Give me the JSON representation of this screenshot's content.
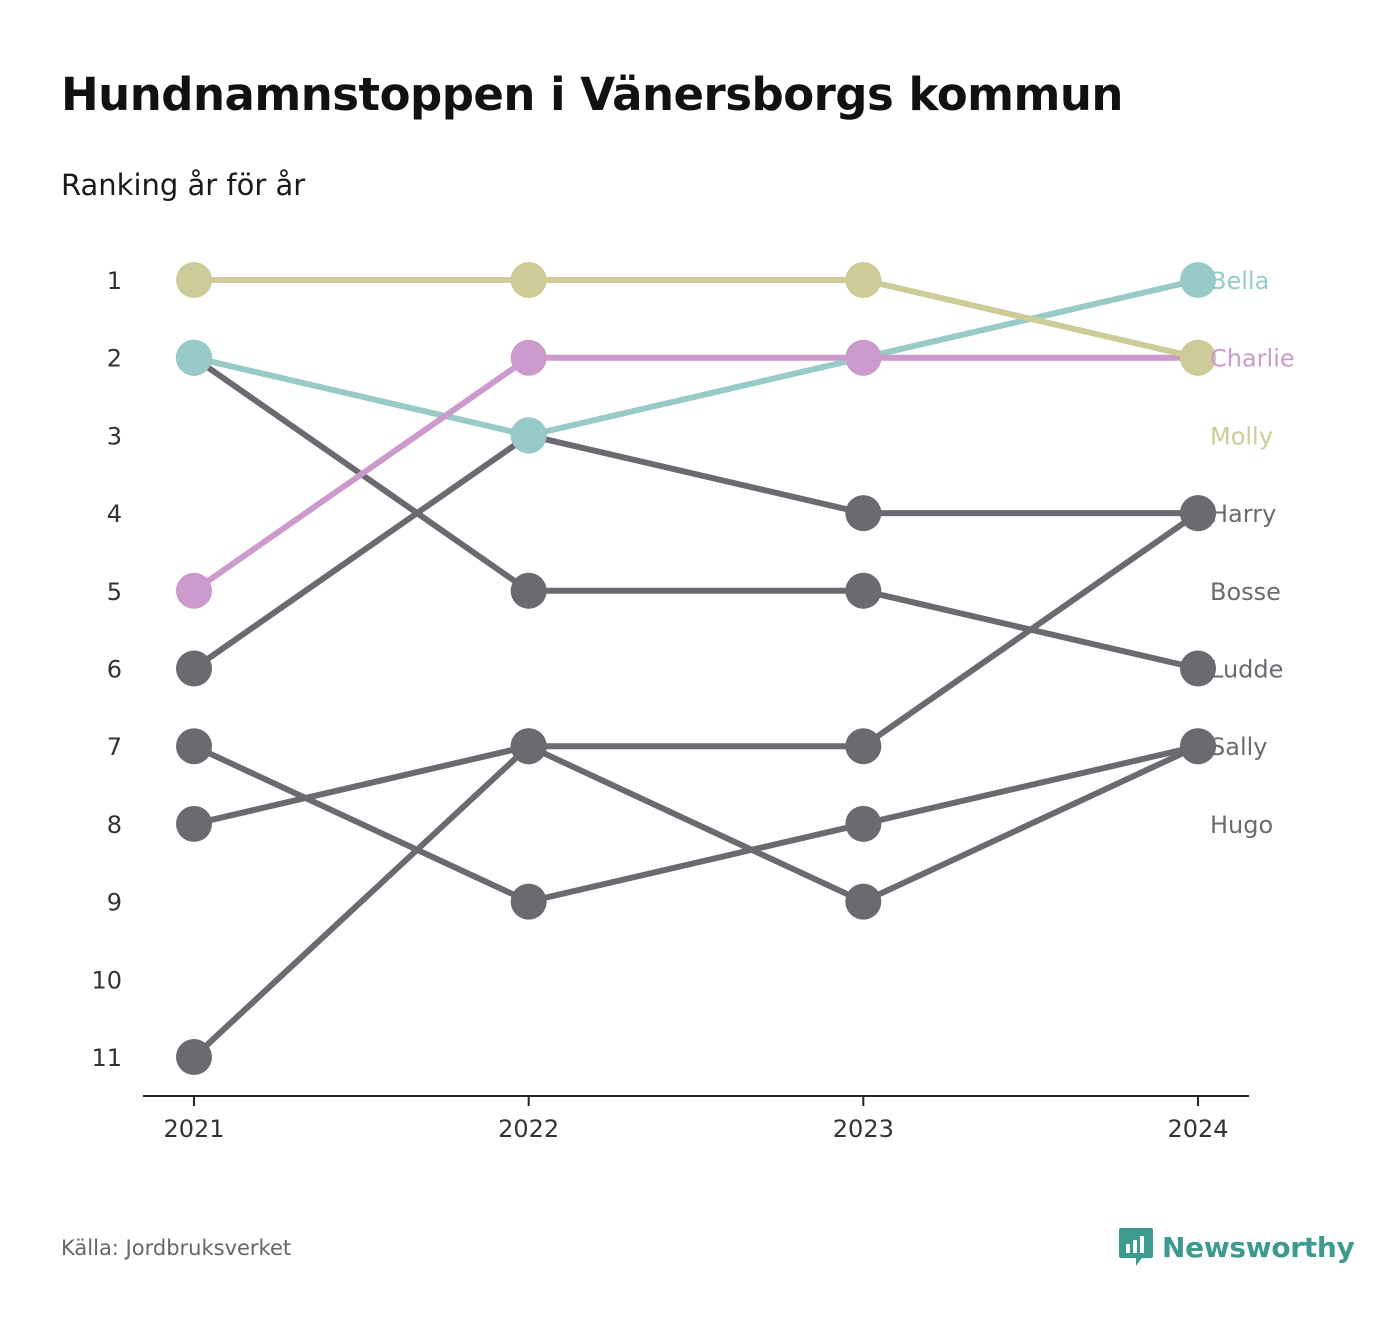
{
  "page": {
    "title": "Hundnamnstoppen i Vänersborgs kommun",
    "subtitle": "Ranking år för år",
    "source": "Källa: Jordbruksverket",
    "brand": "Newsworthy",
    "brand_icon": "newsworthy-logo-icon",
    "brand_color": "#3d9a8f"
  },
  "chart_data": {
    "type": "line",
    "title": "Hundnamnstoppen i Vänersborgs kommun",
    "subtitle": "Ranking år för år",
    "x": [
      "2021",
      "2022",
      "2023",
      "2024"
    ],
    "y_ticks": [
      "1",
      "2",
      "3",
      "4",
      "5",
      "6",
      "7",
      "8",
      "9",
      "10",
      "11"
    ],
    "ylim": [
      1,
      11
    ],
    "y_reversed": true,
    "grid": false,
    "legend": "end-labels-right",
    "series": [
      {
        "name": "Bella",
        "color": "#98cbc8",
        "values": [
          2,
          3,
          2,
          1
        ]
      },
      {
        "name": "Charlie",
        "color": "#cc9acc",
        "values": [
          5,
          2,
          2,
          2
        ]
      },
      {
        "name": "Molly",
        "color": "#cdcc98",
        "values": [
          1,
          1,
          1,
          2
        ]
      },
      {
        "name": "Harry",
        "color": "#6b6a70",
        "values": [
          6,
          3,
          4,
          4
        ]
      },
      {
        "name": "Bosse",
        "color": "#6b6a70",
        "values": [
          2,
          5,
          5,
          6
        ]
      },
      {
        "name": "Ludde",
        "color": "#6b6a70",
        "values": [
          11,
          7,
          7,
          4
        ]
      },
      {
        "name": "Sally",
        "color": "#6b6a70",
        "values": [
          8,
          7,
          9,
          7
        ]
      },
      {
        "name": "Hugo",
        "color": "#6b6a70",
        "values": [
          7,
          9,
          8,
          7
        ]
      }
    ]
  }
}
